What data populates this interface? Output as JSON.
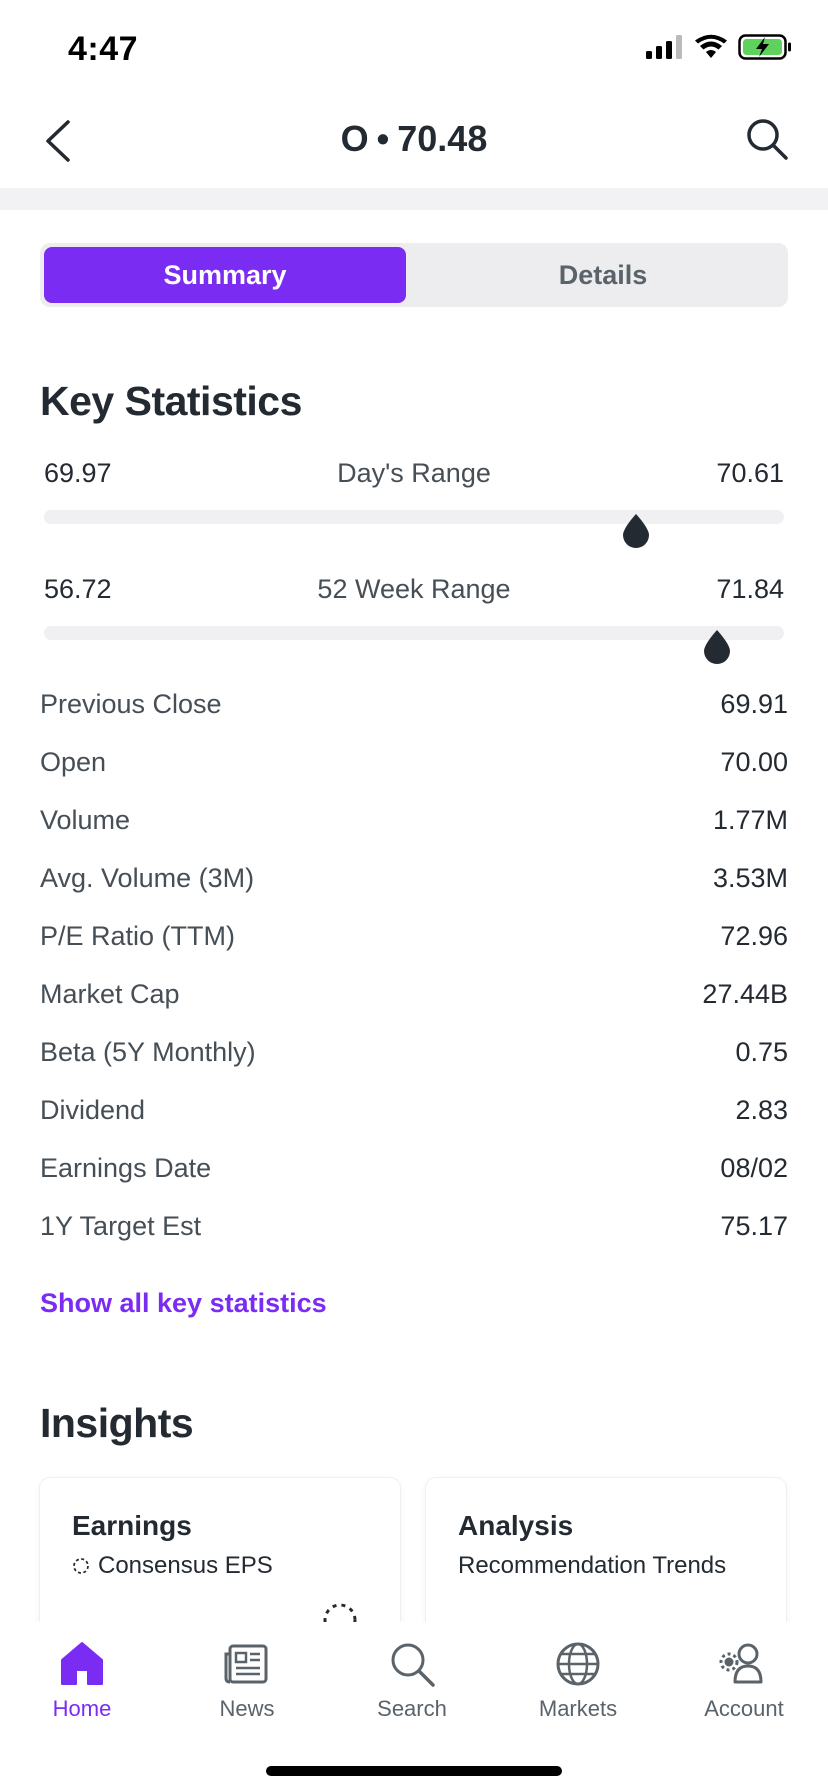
{
  "status": {
    "time": "4:47"
  },
  "header": {
    "symbol": "O",
    "separator": "•",
    "price": "70.48"
  },
  "tabs": {
    "summary": "Summary",
    "details": "Details"
  },
  "key_statistics": {
    "title": "Key Statistics",
    "days_range": {
      "label": "Day's Range",
      "low": "69.97",
      "high": "70.61",
      "current_fraction": 0.8
    },
    "week52_range": {
      "label": "52 Week Range",
      "low": "56.72",
      "high": "71.84",
      "current_fraction": 0.91
    },
    "rows": [
      {
        "label": "Previous Close",
        "value": "69.91"
      },
      {
        "label": "Open",
        "value": "70.00"
      },
      {
        "label": "Volume",
        "value": "1.77M"
      },
      {
        "label": "Avg. Volume (3M)",
        "value": "3.53M"
      },
      {
        "label": "P/E Ratio (TTM)",
        "value": "72.96"
      },
      {
        "label": "Market Cap",
        "value": "27.44B"
      },
      {
        "label": "Beta (5Y Monthly)",
        "value": "0.75"
      },
      {
        "label": "Dividend",
        "value": "2.83"
      },
      {
        "label": "Earnings Date",
        "value": "08/02"
      },
      {
        "label": "1Y Target Est",
        "value": "75.17"
      }
    ],
    "show_all": "Show all key statistics"
  },
  "insights": {
    "title": "Insights",
    "cards": [
      {
        "title": "Earnings",
        "subtitle": "Consensus EPS"
      },
      {
        "title": "Analysis",
        "subtitle": "Recommendation Trends"
      }
    ]
  },
  "tabbar": {
    "items": [
      {
        "label": "Home",
        "icon": "home-icon"
      },
      {
        "label": "News",
        "icon": "news-icon"
      },
      {
        "label": "Search",
        "icon": "search-icon"
      },
      {
        "label": "Markets",
        "icon": "globe-icon"
      },
      {
        "label": "Account",
        "icon": "account-icon"
      }
    ]
  },
  "colors": {
    "accent": "#7b2cf2",
    "text": "#232a31",
    "muted": "#5b636a"
  }
}
